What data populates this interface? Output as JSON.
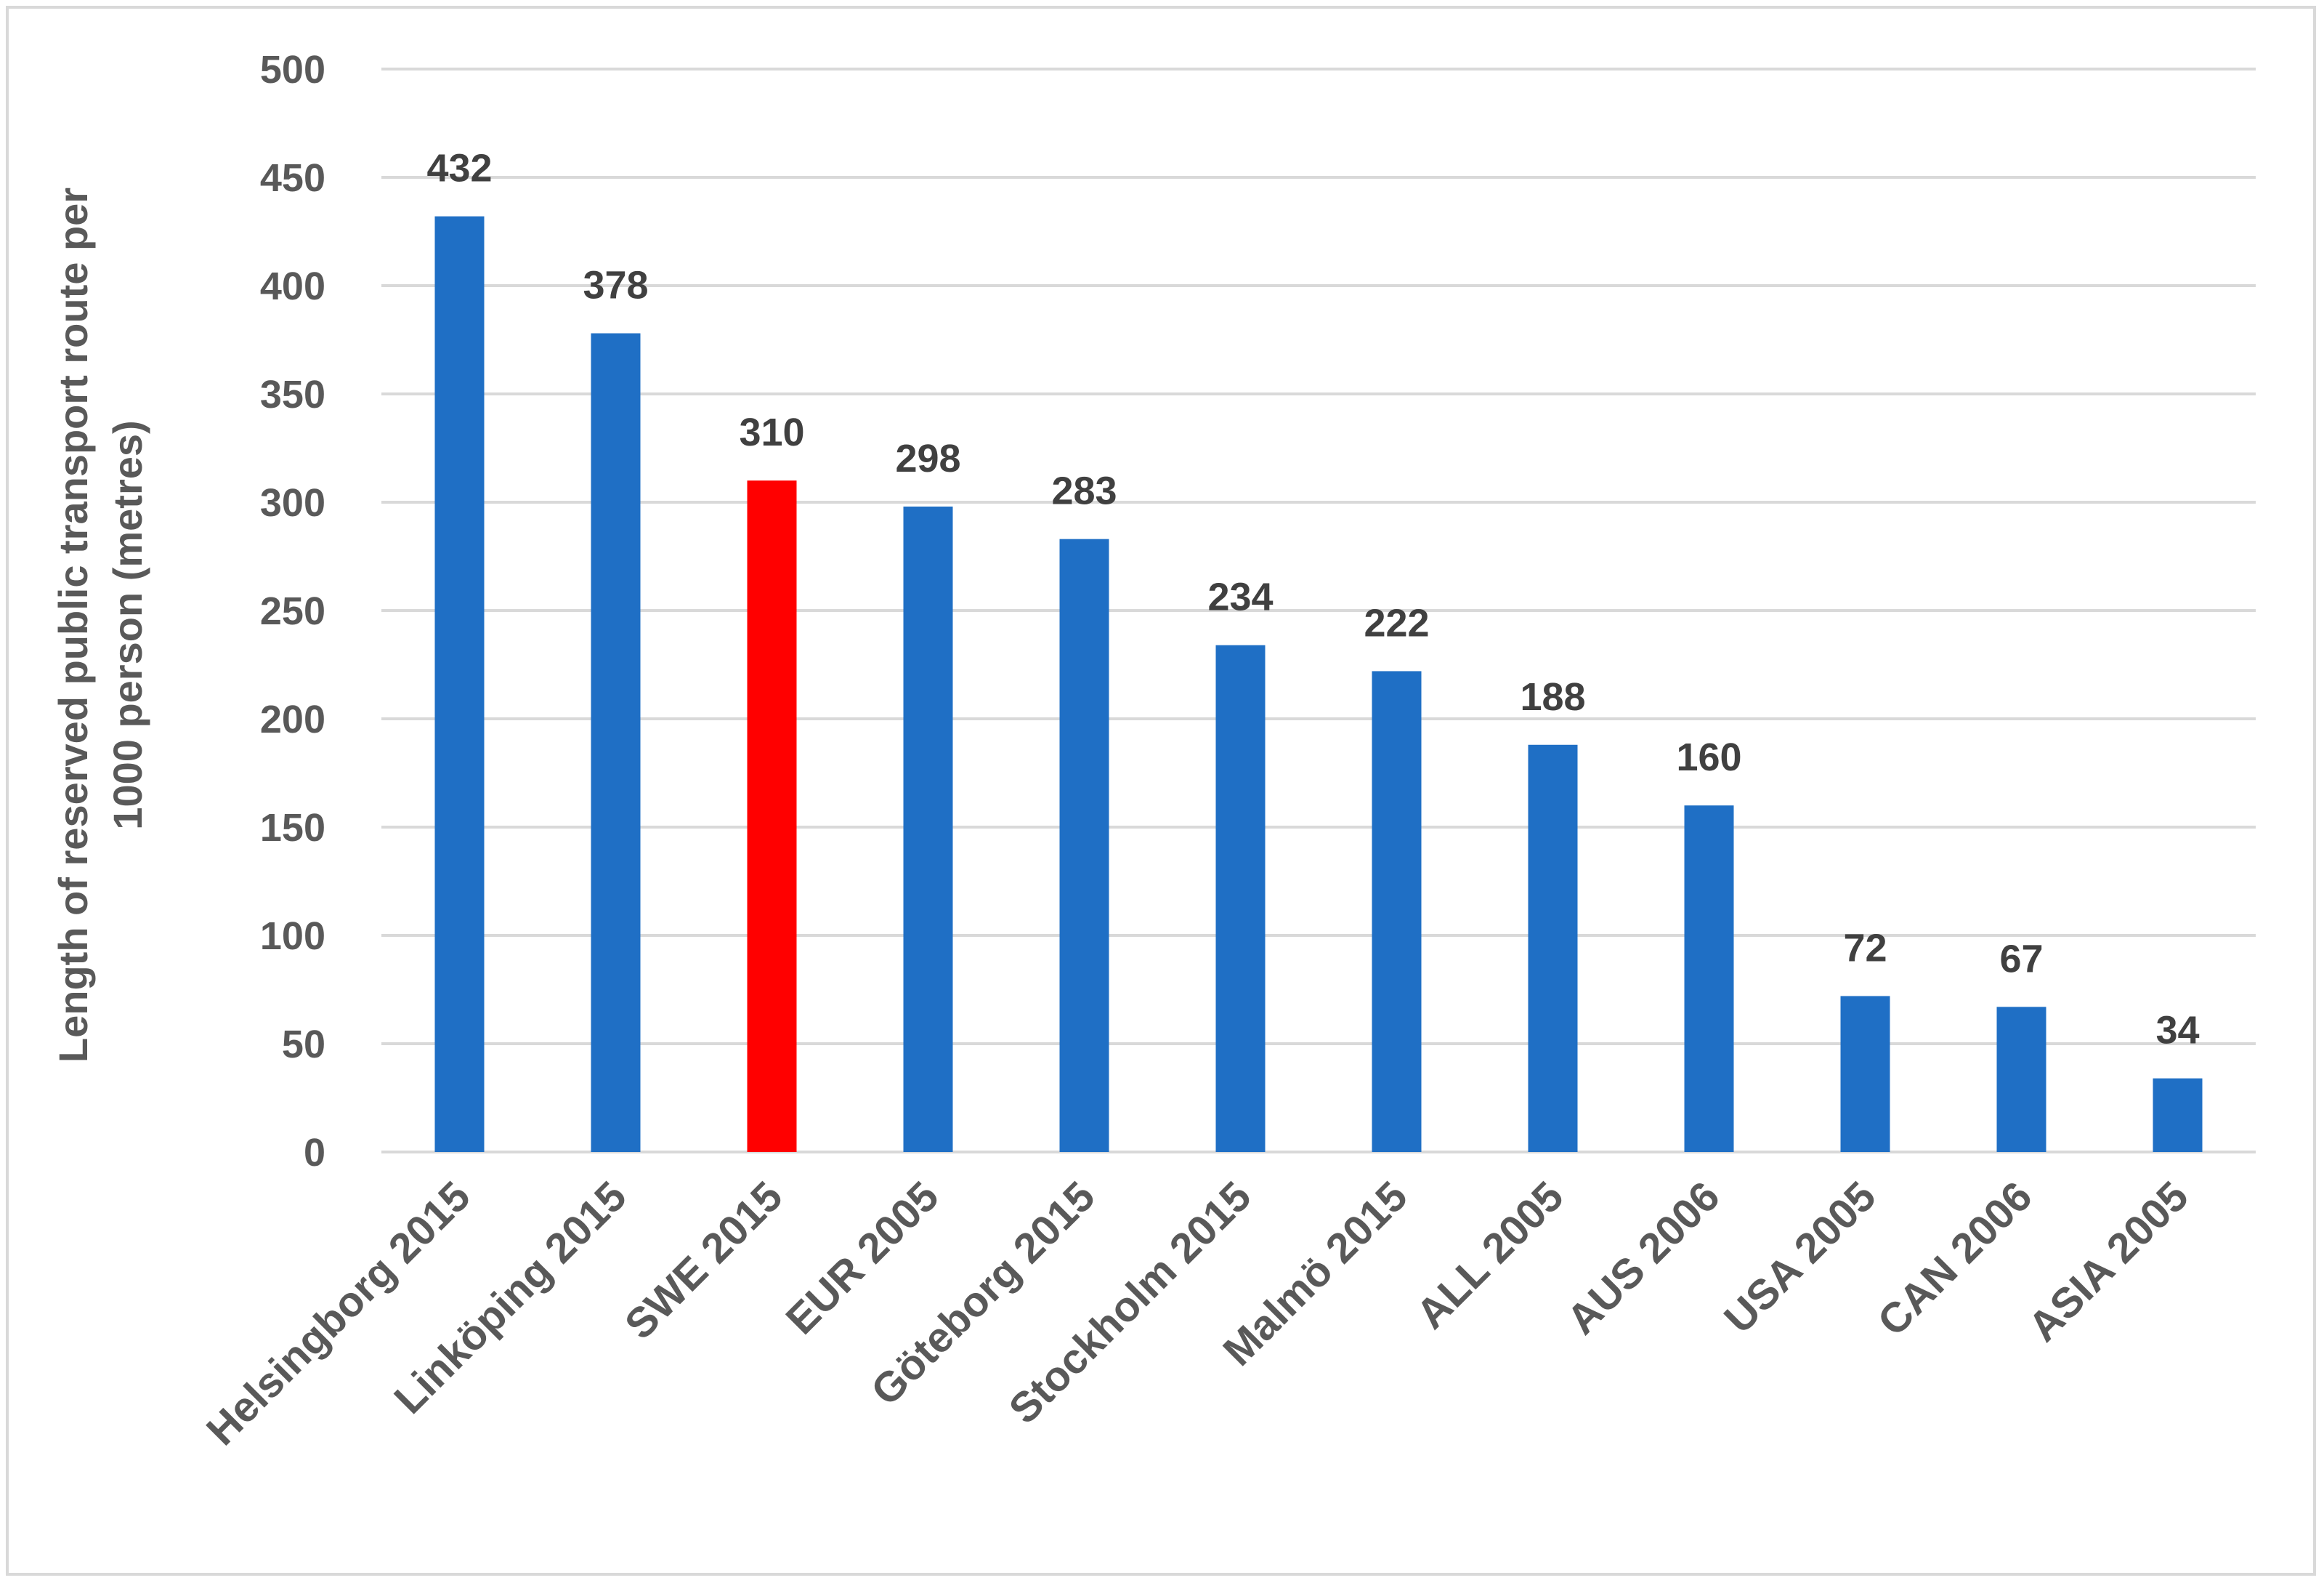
{
  "chart_data": {
    "type": "bar",
    "title": "",
    "xlabel": "",
    "ylabel_lines": [
      "Length of reserved public transport route per",
      "1000 person (metres)"
    ],
    "ylim": [
      0,
      500
    ],
    "yticks": [
      0,
      50,
      100,
      150,
      200,
      250,
      300,
      350,
      400,
      450,
      500
    ],
    "grid": true,
    "legend": "none",
    "categories": [
      "Helsingborg 2015",
      "Linköping 2015",
      "SWE 2015",
      "EUR 2005",
      "Göteborg 2015",
      "Stockholm 2015",
      "Malmö 2015",
      "ALL 2005",
      "AUS 2006",
      "USA 2005",
      "CAN 2006",
      "ASIA 2005"
    ],
    "values": [
      432,
      378,
      310,
      298,
      283,
      234,
      222,
      188,
      160,
      72,
      67,
      34
    ],
    "bar_colors": [
      "#1f6fc5",
      "#1f6fc5",
      "#ff0000",
      "#1f6fc5",
      "#1f6fc5",
      "#1f6fc5",
      "#1f6fc5",
      "#1f6fc5",
      "#1f6fc5",
      "#1f6fc5",
      "#1f6fc5",
      "#1f6fc5"
    ],
    "highlight_color": "#ff0000",
    "bar_color": "#1f6fc5"
  }
}
